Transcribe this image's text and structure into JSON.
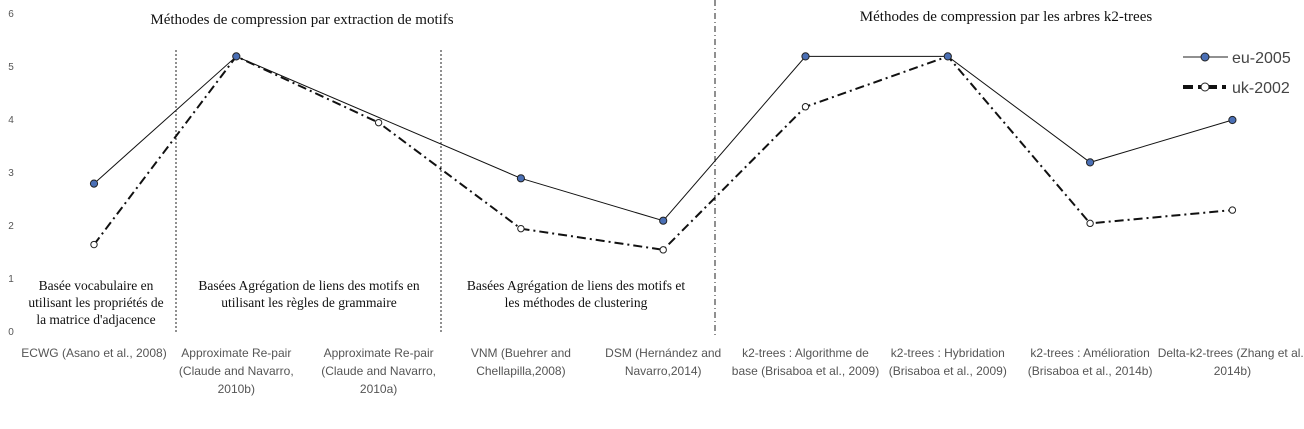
{
  "chart_data": {
    "type": "line",
    "categories": [
      [
        "ECWG (Asano et al., 2008)"
      ],
      [
        "Approximate Re-pair",
        "(Claude and Navarro,",
        "2010b)"
      ],
      [
        "Approximate Re-pair",
        "(Claude and Navarro,",
        "2010a)"
      ],
      [
        "VNM (Buehrer and",
        "Chellapilla,2008)"
      ],
      [
        "DSM (Hernández and",
        "Navarro,2014)"
      ],
      [
        "k2-trees : Algorithme de",
        "base (Brisaboa et al., 2009)"
      ],
      [
        "k2-trees : Hybridation",
        "(Brisaboa et al., 2009)"
      ],
      [
        "k2-trees : Amélioration",
        "(Brisaboa et al., 2014b)"
      ],
      [
        "Delta-k2-trees (Zhang et al.,",
        "2014b)"
      ]
    ],
    "series": [
      {
        "name": "eu-2005",
        "values": [
          2.8,
          5.2,
          null,
          2.9,
          2.1,
          5.2,
          5.2,
          3.2,
          4.0
        ],
        "color": "#111111",
        "marker_fill": "#4a6fb5"
      },
      {
        "name": "uk-2002",
        "values": [
          1.65,
          5.2,
          3.95,
          1.95,
          1.55,
          4.25,
          5.2,
          2.05,
          2.3
        ],
        "color": "#111111",
        "marker_fill": "#ffffff"
      }
    ],
    "ylim": [
      0,
      6
    ],
    "yticks": [
      "0",
      "1",
      "2",
      "3",
      "4",
      "5",
      "6"
    ],
    "legend_position": "top-right",
    "section_titles": [
      "Méthodes de compression par extraction de motifs",
      "Méthodes de compression par les arbres k2-trees"
    ],
    "group_labels": [
      [
        "Basée vocabulaire en",
        "utilisant les propriétés de",
        "la matrice d'adjacence"
      ],
      [
        "Basées Agrégation de liens des motifs en",
        "utilisant les règles de grammaire"
      ],
      [
        "Basées Agrégation de liens des motifs et",
        "les méthodes de clustering"
      ]
    ]
  }
}
